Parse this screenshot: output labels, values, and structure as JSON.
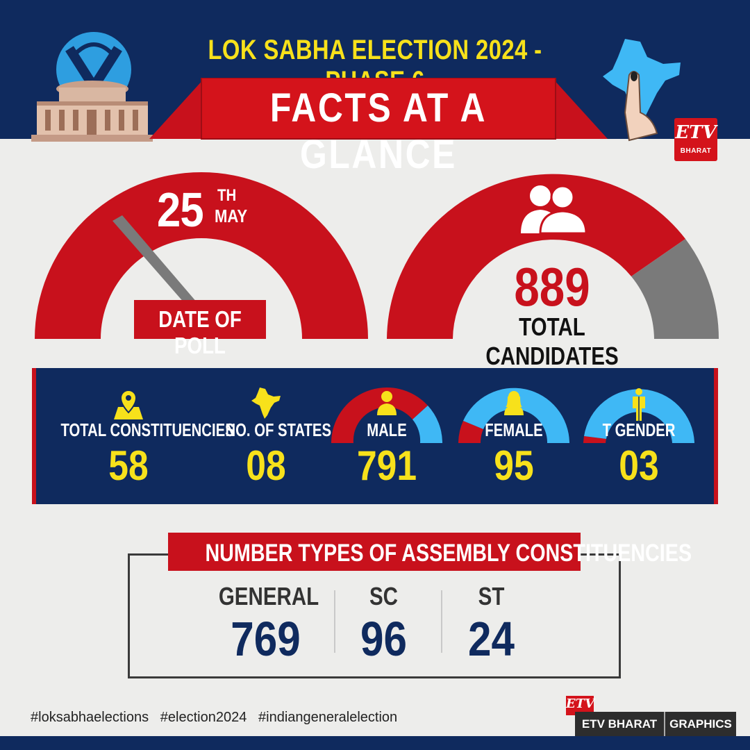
{
  "header": {
    "title": "LOK SABHA ELECTION 2024 - PHASE 6",
    "banner": "FACTS AT A GLANCE",
    "logo_text": "ETV",
    "logo_subtext": "BHARAT"
  },
  "poll_date": {
    "day": "25",
    "suffix": "TH",
    "month": "MAY",
    "label": "DATE OF POLL"
  },
  "candidates": {
    "total": "889",
    "label": "TOTAL CANDIDATES"
  },
  "stats": {
    "constituencies": {
      "label": "TOTAL CONSTITUENCIES",
      "value": "58"
    },
    "states": {
      "label": "NO. OF STATES",
      "value": "08"
    },
    "male": {
      "label": "MALE",
      "value": "791"
    },
    "female": {
      "label": "FEMALE",
      "value": "95"
    },
    "tgender": {
      "label": "T GENDER",
      "value": "03"
    }
  },
  "assembly": {
    "title": "NUMBER TYPES OF ASSEMBLY CONSTITUENCIES",
    "general": {
      "label": "GENERAL",
      "value": "769"
    },
    "sc": {
      "label": "SC",
      "value": "96"
    },
    "st": {
      "label": "ST",
      "value": "24"
    }
  },
  "footer": {
    "hashtags": "#loksabhaelections   #election2024   #indiangeneralelection",
    "logo_text": "ETV",
    "brand": "ETV BHARAT",
    "section": "GRAPHICS"
  },
  "colors": {
    "navy": "#0f2a5e",
    "red": "#c8111c",
    "yellow": "#f7e11b",
    "sky": "#3fb8f5",
    "grey": "#7a7a7a",
    "background": "#ededeb"
  },
  "icons": [
    "election-commission-logo-icon",
    "parliament-building-icon",
    "india-map-voting-finger-icon",
    "people-icon",
    "map-pin-icon",
    "india-map-icon",
    "male-icon",
    "female-icon",
    "transgender-icon"
  ]
}
